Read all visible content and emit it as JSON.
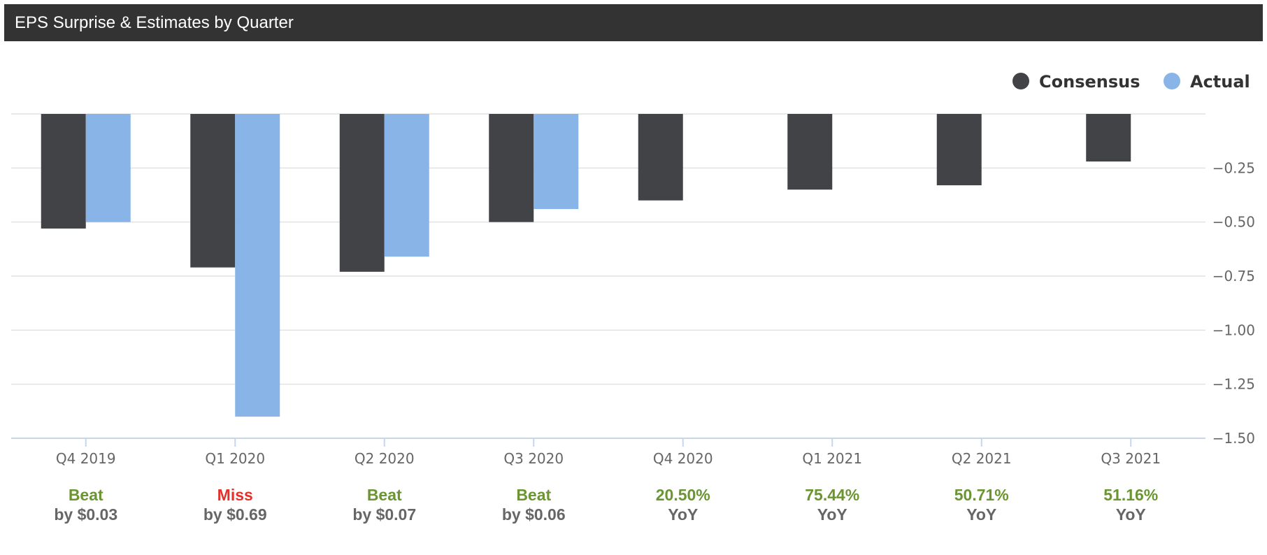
{
  "header": {
    "title": "EPS Surprise & Estimates by Quarter"
  },
  "colors": {
    "consensus": "#424347",
    "actual": "#88b4e8",
    "beat": "#6a9532",
    "miss": "#e4312b",
    "grid": "#e2e2e2",
    "axis": "#c8d6ea"
  },
  "chart_data": {
    "type": "bar",
    "categories": [
      "Q4 2019",
      "Q1 2020",
      "Q2 2020",
      "Q3 2020",
      "Q4 2020",
      "Q1 2021",
      "Q2 2021",
      "Q3 2021"
    ],
    "series": [
      {
        "name": "Consensus",
        "values": [
          -0.53,
          -0.71,
          -0.73,
          -0.5,
          -0.4,
          -0.35,
          -0.33,
          -0.22
        ]
      },
      {
        "name": "Actual",
        "values": [
          -0.5,
          -1.4,
          -0.66,
          -0.44,
          null,
          null,
          null,
          null
        ]
      }
    ],
    "ylim": [
      -1.5,
      0
    ],
    "yticks": [
      {
        "value": -0.25,
        "label": "−0.25"
      },
      {
        "value": -0.5,
        "label": "−0.50"
      },
      {
        "value": -0.75,
        "label": "−0.75"
      },
      {
        "value": -1.0,
        "label": "−1.00"
      },
      {
        "value": -1.25,
        "label": "−1.25"
      },
      {
        "value": -1.5,
        "label": "−1.50"
      }
    ],
    "legend_position": "top-right",
    "grid": true,
    "annotations": [
      {
        "status": "Beat",
        "kind": "beat",
        "detail": "by $0.03"
      },
      {
        "status": "Miss",
        "kind": "miss",
        "detail": "by $0.69"
      },
      {
        "status": "Beat",
        "kind": "beat",
        "detail": "by $0.07"
      },
      {
        "status": "Beat",
        "kind": "beat",
        "detail": "by $0.06"
      },
      {
        "status": "20.50%",
        "kind": "beat",
        "detail": "YoY"
      },
      {
        "status": "75.44%",
        "kind": "beat",
        "detail": "YoY"
      },
      {
        "status": "50.71%",
        "kind": "beat",
        "detail": "YoY"
      },
      {
        "status": "51.16%",
        "kind": "beat",
        "detail": "YoY"
      }
    ]
  }
}
